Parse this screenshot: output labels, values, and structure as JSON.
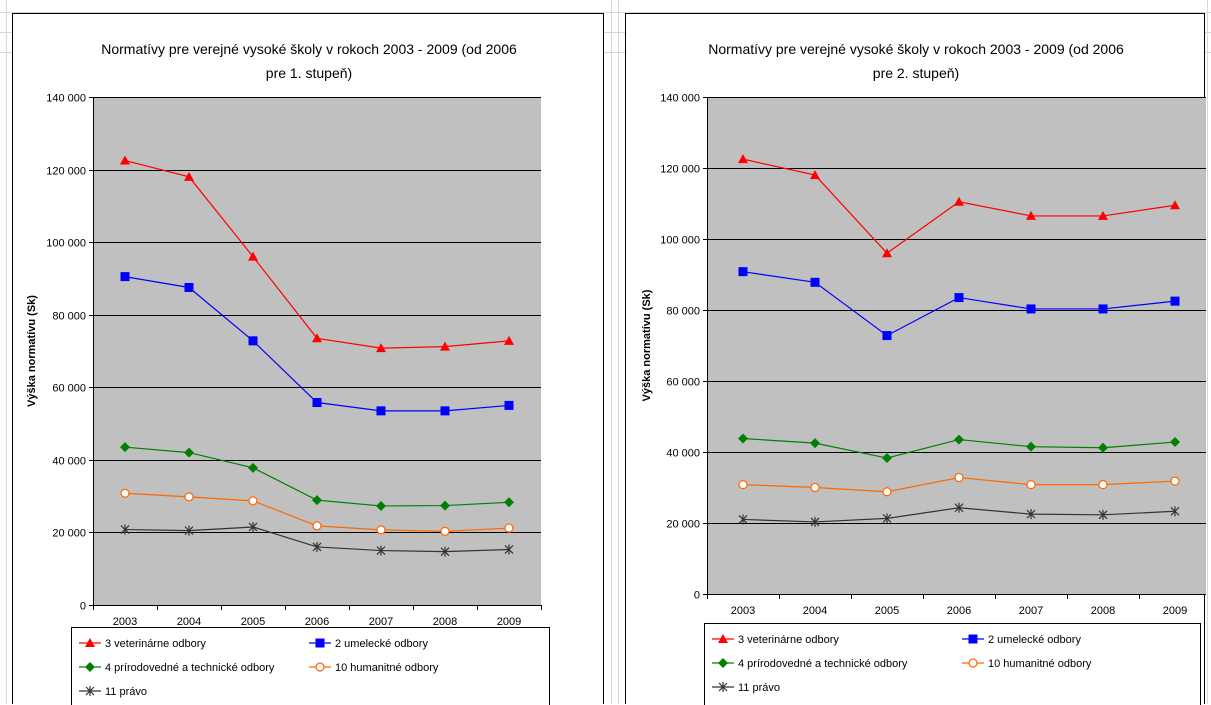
{
  "colors": {
    "plot_area": "#c0c0c0",
    "gridline": "#000000"
  },
  "chart_data": [
    {
      "type": "line",
      "title": "Normatívy pre verejné vysoké školy v rokoch 2003 - 2009 (od 2006 pre 1. stupeň)",
      "title_lines": [
        "Normatívy pre verejné vysoké školy v rokoch 2003 - 2009 (od 2006",
        "pre 1. stupeň)"
      ],
      "xlabel": "",
      "ylabel": "Výška normatívu (Sk)",
      "ylim": [
        0,
        140000
      ],
      "yticks": [
        0,
        20000,
        40000,
        60000,
        80000,
        100000,
        120000,
        140000
      ],
      "ytick_labels": [
        "0",
        "20 000",
        "40 000",
        "60 000",
        "80 000",
        "100 000",
        "120 000",
        "140 000"
      ],
      "grid": true,
      "legend_position": "bottom",
      "categories": [
        "2003",
        "2004",
        "2005",
        "2006",
        "2007",
        "2008",
        "2009"
      ],
      "series": [
        {
          "name": "3 veterinárne odbory",
          "color": "#ff0000",
          "marker": "triangle",
          "values": [
            122500,
            118000,
            96000,
            73500,
            70800,
            71200,
            72800
          ]
        },
        {
          "name": "2 umelecké odbory",
          "color": "#0000ff",
          "marker": "square",
          "values": [
            90500,
            87500,
            72800,
            55800,
            53500,
            53500,
            55000
          ]
        },
        {
          "name": "4 prírodovedné a technické odbory",
          "color": "#008000",
          "marker": "diamond",
          "values": [
            43500,
            42000,
            37800,
            28900,
            27300,
            27400,
            28300
          ]
        },
        {
          "name": "10 humanitné odbory",
          "color": "#ff6600",
          "marker": "circle",
          "values": [
            30800,
            29800,
            28700,
            21800,
            20700,
            20300,
            21200
          ]
        },
        {
          "name": "11 právo",
          "color": "#333333",
          "marker": "star",
          "values": [
            20800,
            20500,
            21500,
            16000,
            15000,
            14700,
            15300
          ]
        }
      ]
    },
    {
      "type": "line",
      "title": "Normatívy pre verejné vysoké školy v rokoch 2003 - 2009 (od 2006 pre 2. stupeň)",
      "title_lines": [
        "Normatívy pre verejné vysoké školy v rokoch 2003 - 2009 (od 2006",
        "pre 2. stupeň)"
      ],
      "xlabel": "",
      "ylabel": "Výška normatívu (Sk)",
      "ylim": [
        0,
        140000
      ],
      "yticks": [
        0,
        20000,
        40000,
        60000,
        80000,
        100000,
        120000,
        140000
      ],
      "ytick_labels": [
        "0",
        "20 000",
        "40 000",
        "60 000",
        "80 000",
        "100 000",
        "120 000",
        "140 000"
      ],
      "grid": true,
      "legend_position": "bottom",
      "categories": [
        "2003",
        "2004",
        "2005",
        "2006",
        "2007",
        "2008",
        "2009"
      ],
      "series": [
        {
          "name": "3 veterinárne odbory",
          "color": "#ff0000",
          "marker": "triangle",
          "values": [
            122500,
            118000,
            96000,
            110500,
            106500,
            106500,
            109500
          ]
        },
        {
          "name": "2 umelecké odbory",
          "color": "#0000ff",
          "marker": "square",
          "values": [
            90800,
            87800,
            72800,
            83500,
            80300,
            80300,
            82500
          ]
        },
        {
          "name": "4 prírodovedné a technické odbory",
          "color": "#008000",
          "marker": "diamond",
          "values": [
            43800,
            42500,
            38300,
            43500,
            41500,
            41200,
            42800
          ]
        },
        {
          "name": "10 humanitné odbory",
          "color": "#ff6600",
          "marker": "circle",
          "values": [
            30800,
            30000,
            28800,
            32800,
            30800,
            30800,
            31800
          ]
        },
        {
          "name": "11 právo",
          "color": "#333333",
          "marker": "star",
          "values": [
            21000,
            20300,
            21300,
            24300,
            22500,
            22300,
            23300
          ]
        }
      ]
    }
  ]
}
